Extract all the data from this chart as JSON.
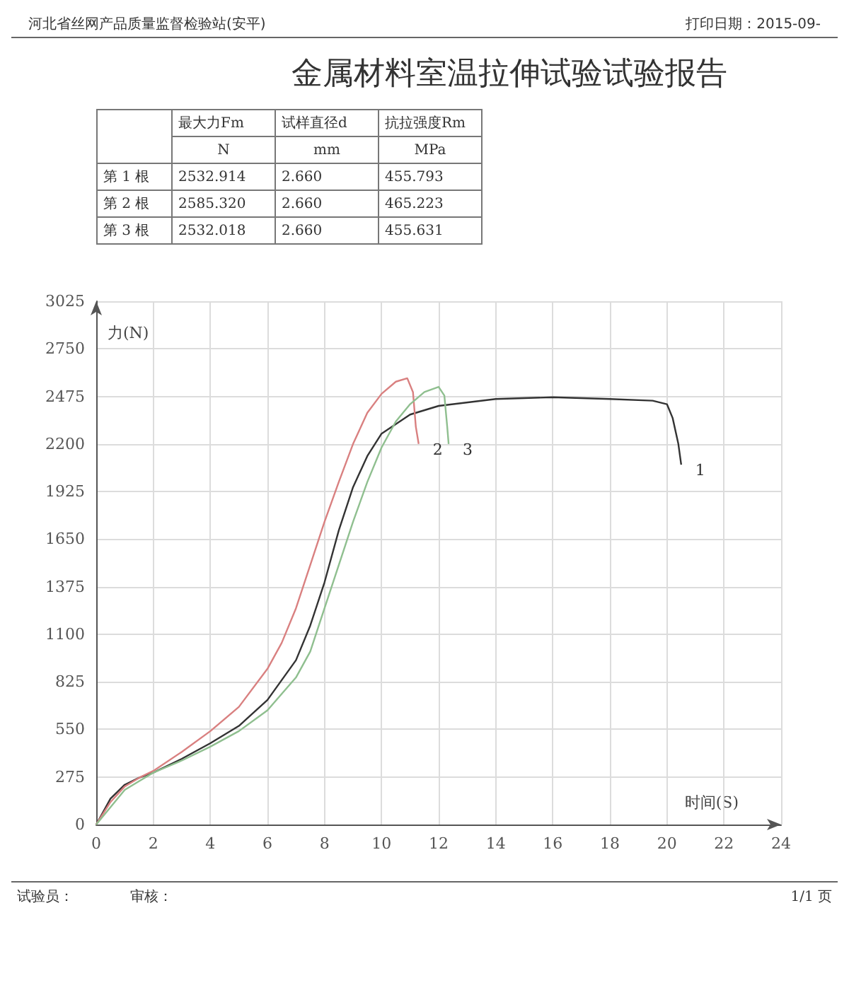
{
  "chart_data": {
    "type": "line",
    "title": "金属材料室温拉伸试验试验报告",
    "xlabel": "时间(S)",
    "ylabel": "力(N)",
    "xlim": [
      0,
      24
    ],
    "xticks": [
      0,
      2,
      4,
      6,
      8,
      10,
      12,
      14,
      16,
      18,
      20,
      22,
      24
    ],
    "ylim": [
      0,
      3025
    ],
    "yticks": [
      0,
      275,
      550,
      825,
      1100,
      1375,
      1650,
      1925,
      2200,
      2475,
      2750,
      3025
    ],
    "grid": true,
    "legend": false,
    "marker": "none",
    "line_style": "solid",
    "annotations": [
      "河北省丝网产品质量监督检验站(安平)",
      "打印日期：2015-09-",
      "最大力Fm",
      "试样直径d",
      "抗拉强度Rm",
      "N",
      "mm",
      "MPa",
      "第 1 根",
      "2532.914",
      "2.660",
      "455.793",
      "第 2 根",
      "2585.320",
      "2.660",
      "465.223",
      "第 3 根",
      "2532.018",
      "2.660",
      "455.631",
      "试验员：",
      "审核：",
      "1/1 页"
    ],
    "series": [
      {
        "name": "1",
        "color": "#333333",
        "x": [
          0,
          0.5,
          1,
          1.5,
          2,
          3,
          4,
          5,
          6,
          7,
          7.5,
          8,
          8.5,
          9,
          9.5,
          10,
          11,
          12,
          14,
          16,
          18,
          19.5,
          20,
          20.2,
          20.4,
          20.5
        ],
        "values": [
          0,
          150,
          230,
          270,
          300,
          380,
          470,
          570,
          720,
          950,
          1150,
          1400,
          1700,
          1950,
          2130,
          2260,
          2370,
          2420,
          2460,
          2470,
          2460,
          2450,
          2430,
          2350,
          2200,
          2080
        ]
      },
      {
        "name": "2",
        "color": "#d98080",
        "x": [
          0,
          0.5,
          1,
          1.5,
          2,
          3,
          4,
          5,
          6,
          6.5,
          7,
          7.5,
          8,
          8.5,
          9,
          9.5,
          10,
          10.5,
          10.9,
          11.1,
          11.2,
          11.3
        ],
        "values": [
          0,
          130,
          220,
          270,
          310,
          420,
          540,
          680,
          900,
          1050,
          1250,
          1500,
          1750,
          1980,
          2200,
          2380,
          2490,
          2560,
          2580,
          2500,
          2300,
          2200
        ]
      },
      {
        "name": "3",
        "color": "#8fbf8f",
        "x": [
          0,
          0.5,
          1,
          1.5,
          2,
          3,
          4,
          5,
          6,
          7,
          7.5,
          8,
          8.5,
          9,
          9.5,
          10,
          10.5,
          11,
          11.5,
          12,
          12.2,
          12.3,
          12.35
        ],
        "values": [
          0,
          100,
          200,
          250,
          300,
          370,
          450,
          540,
          660,
          850,
          1000,
          1250,
          1500,
          1750,
          1980,
          2180,
          2330,
          2430,
          2500,
          2530,
          2480,
          2300,
          2200
        ]
      }
    ]
  }
}
